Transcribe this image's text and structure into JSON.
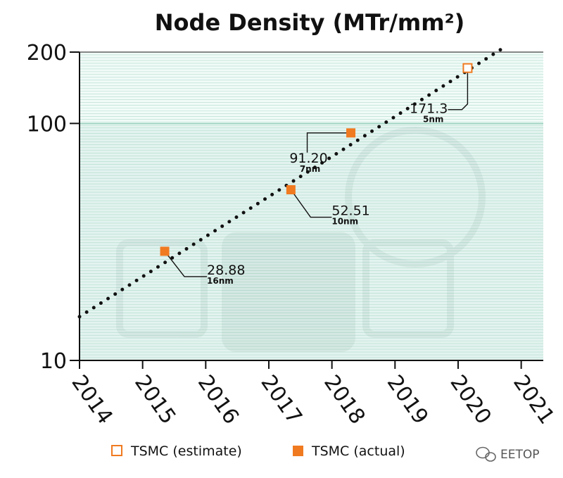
{
  "chart_data": {
    "type": "scatter",
    "title": "Node Density (MTr/mm²)",
    "y_scale": "log",
    "ylim": [
      10,
      200
    ],
    "yticks": [
      10,
      100,
      200
    ],
    "xlim": [
      2014,
      2021.35
    ],
    "xticks": [
      "2014",
      "2015",
      "2016",
      "2017",
      "2018",
      "2019",
      "2020",
      "2021"
    ],
    "grid": true,
    "legend_position": "bottom",
    "trend": {
      "type": "dotted",
      "x": [
        2014,
        2020.7
      ],
      "y": [
        15.3,
        207
      ]
    },
    "series": [
      {
        "name": "TSMC (estimate)",
        "marker": "hollow-square",
        "color": "#f07a20",
        "points": [
          {
            "x": 2020.15,
            "y": 171.3,
            "label": "171.3",
            "node": "5nm"
          }
        ]
      },
      {
        "name": "TSMC (actual)",
        "marker": "filled-square",
        "color": "#f07a20",
        "points": [
          {
            "x": 2015.35,
            "y": 28.88,
            "label": "28.88",
            "node": "16nm"
          },
          {
            "x": 2017.35,
            "y": 52.51,
            "label": "52.51",
            "node": "10nm"
          },
          {
            "x": 2018.3,
            "y": 91.2,
            "label": "91.20",
            "node": "7nm"
          }
        ]
      }
    ]
  },
  "watermark": {
    "icon": "wechat-icon",
    "text": "EETOP"
  }
}
